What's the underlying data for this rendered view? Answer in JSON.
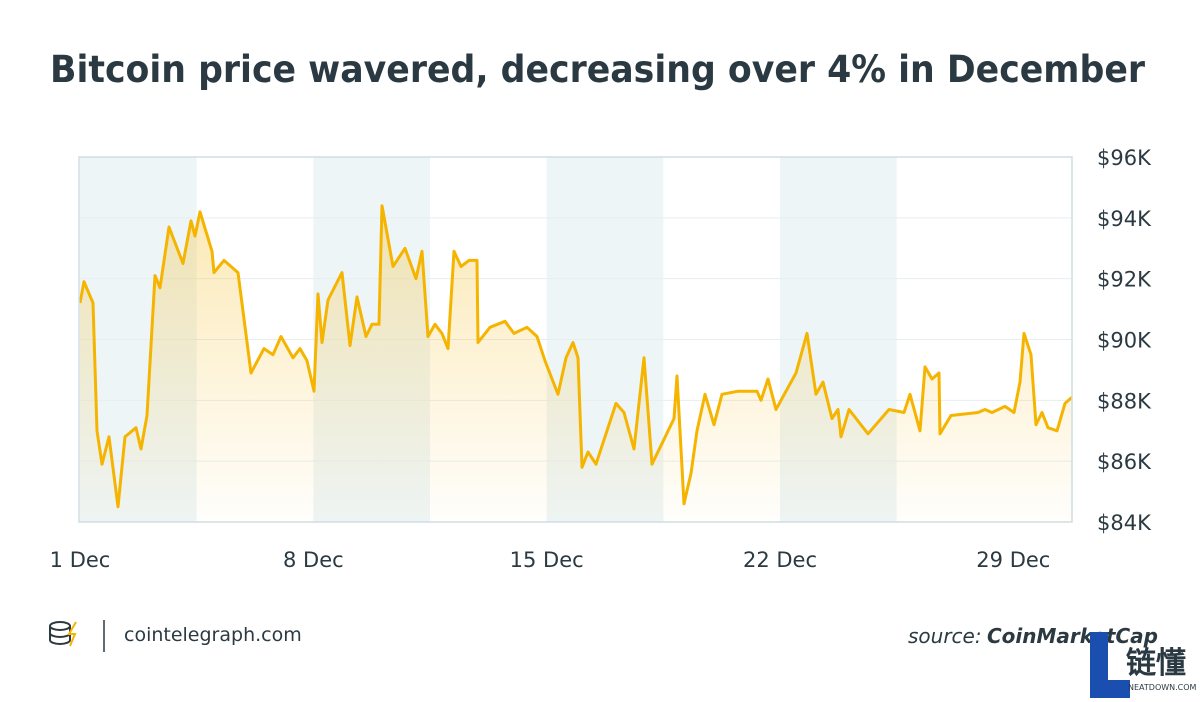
{
  "chart_data": {
    "type": "area-line",
    "title": "Bitcoin price wavered, decreasing over 4% in December",
    "color": "#f5b400",
    "x": [
      1.0,
      1.12,
      1.39,
      1.51,
      1.66,
      1.87,
      2.14,
      2.35,
      2.68,
      2.83,
      3.01,
      3.25,
      3.4,
      3.67,
      4.09,
      4.33,
      4.45,
      4.6,
      4.96,
      5.02,
      5.32,
      5.74,
      6.13,
      6.52,
      6.79,
      7.03,
      7.39,
      7.6,
      7.81,
      8.02,
      8.14,
      8.26,
      8.44,
      8.86,
      9.1,
      9.31,
      9.58,
      9.76,
      9.97,
      10.06,
      10.39,
      10.75,
      11.08,
      11.26,
      11.44,
      11.65,
      11.86,
      12.04,
      12.22,
      12.43,
      12.67,
      12.91,
      12.94,
      13.3,
      13.75,
      14.02,
      14.41,
      14.71,
      14.95,
      15.34,
      15.58,
      15.79,
      15.94,
      16.06,
      16.24,
      16.48,
      17.08,
      17.32,
      17.62,
      17.92,
      18.16,
      18.82,
      18.91,
      19.12,
      19.33,
      19.51,
      19.75,
      20.02,
      20.26,
      20.74,
      21.31,
      21.43,
      21.64,
      21.88,
      22.48,
      22.81,
      23.08,
      23.29,
      23.56,
      23.74,
      23.83,
      24.07,
      24.64,
      25.27,
      25.72,
      25.9,
      26.2,
      26.35,
      26.56,
      26.77,
      26.8,
      27.13,
      27.94,
      28.15,
      28.36,
      28.75,
      29.02,
      29.2,
      29.32,
      29.53,
      29.68,
      29.86,
      30.04,
      30.31,
      30.55,
      30.76
    ],
    "values": [
      91200,
      91900,
      91200,
      87000,
      85900,
      86800,
      84500,
      86800,
      87100,
      86400,
      87500,
      92100,
      91700,
      93700,
      92500,
      93900,
      93400,
      94200,
      92900,
      92200,
      92600,
      92200,
      88900,
      89700,
      89500,
      90100,
      89400,
      89700,
      89300,
      88300,
      91500,
      89900,
      91300,
      92200,
      89800,
      91400,
      90100,
      90500,
      90500,
      94400,
      92400,
      93000,
      92000,
      92900,
      90100,
      90500,
      90200,
      89700,
      92900,
      92400,
      92600,
      92600,
      89900,
      90400,
      90600,
      90200,
      90400,
      90100,
      89300,
      88200,
      89400,
      89900,
      89400,
      85800,
      86300,
      85900,
      87900,
      87600,
      86400,
      89400,
      85900,
      87400,
      88800,
      84600,
      85600,
      87000,
      88200,
      87200,
      88200,
      88300,
      88300,
      88000,
      88700,
      87700,
      88900,
      90200,
      88200,
      88600,
      87400,
      87700,
      86800,
      87700,
      86900,
      87700,
      87600,
      88200,
      87000,
      89100,
      88700,
      88900,
      86900,
      87500,
      87600,
      87700,
      87600,
      87800,
      87600,
      88600,
      90200,
      89500,
      87200,
      87600,
      87100,
      87000,
      87900,
      88100
    ],
    "xlim": [
      1,
      30.76
    ],
    "xticks": [
      {
        "value": 1,
        "label": "1 Dec"
      },
      {
        "value": 8,
        "label": "8 Dec"
      },
      {
        "value": 15,
        "label": "15 Dec"
      },
      {
        "value": 22,
        "label": "22 Dec"
      },
      {
        "value": 29,
        "label": "29 Dec"
      }
    ],
    "ylim": [
      84000,
      96000
    ],
    "yticks": [
      {
        "value": 84000,
        "label": "$84K"
      },
      {
        "value": 86000,
        "label": "$86K"
      },
      {
        "value": 88000,
        "label": "$88K"
      },
      {
        "value": 90000,
        "label": "$90K"
      },
      {
        "value": 92000,
        "label": "$92K"
      },
      {
        "value": 94000,
        "label": "$94K"
      },
      {
        "value": 96000,
        "label": "$96K"
      }
    ],
    "grid": true
  },
  "footer": {
    "brand": "cointelegraph.com",
    "source_label": "source:",
    "source_name": "CoinMarketCap"
  },
  "watermark": {
    "mark": "链懂",
    "site": "NEATDOWN.COM"
  }
}
